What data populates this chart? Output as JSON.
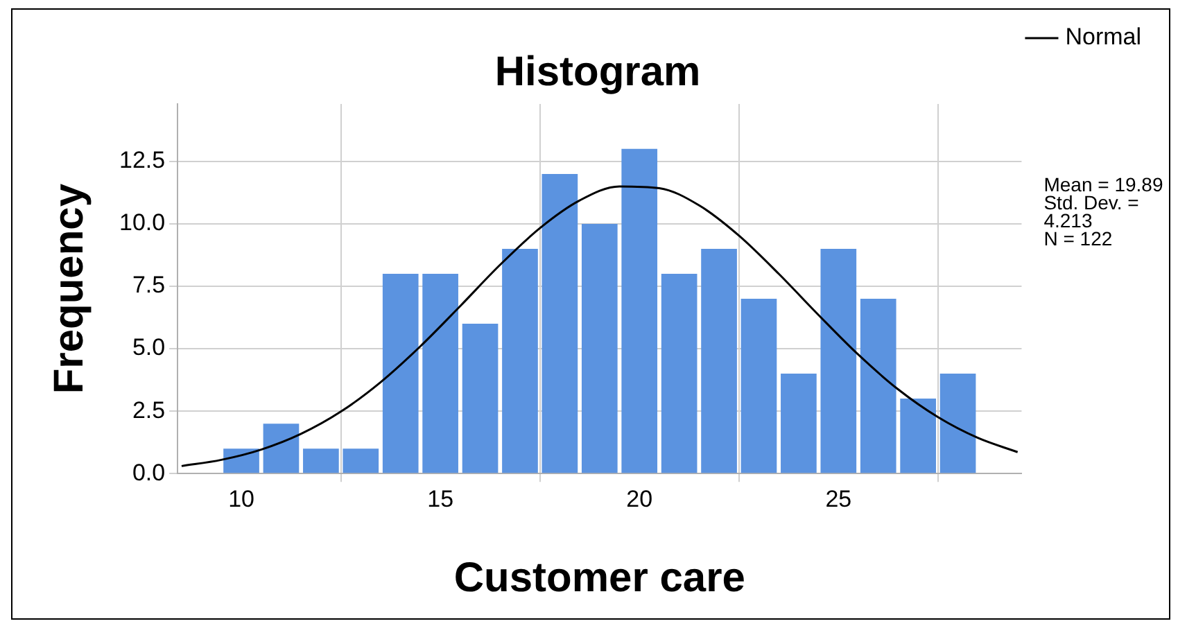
{
  "chart_data": {
    "type": "histogram",
    "title": "Histogram",
    "xlabel": "Customer care",
    "ylabel": "Frequency",
    "bins": [
      9.5,
      10.5,
      11.5,
      12.5,
      13.5,
      14.5,
      15.5,
      16.5,
      17.5,
      18.5,
      19.5,
      20.5,
      21.5,
      22.5,
      23.5,
      24.5,
      25.5,
      26.5,
      27.5,
      28.5
    ],
    "values": [
      1,
      2,
      1,
      1,
      8,
      8,
      6,
      9,
      12,
      10,
      13,
      8,
      9,
      7,
      4,
      9,
      7,
      3,
      4
    ],
    "color": "#5b93e0",
    "series": [
      {
        "name": "Normal",
        "type": "line",
        "color": "#000000",
        "x": [
          8.5,
          9.5,
          10.5,
          11.5,
          12.5,
          13.5,
          14.5,
          15.5,
          16.5,
          17.5,
          18.5,
          19.5,
          20.5,
          21.5,
          22.5,
          23.5,
          24.5,
          25.5,
          26.5,
          27.5,
          28.5,
          29.5
        ],
        "values": [
          0.3,
          0.55,
          0.96,
          1.59,
          2.48,
          3.66,
          5.1,
          6.71,
          8.36,
          9.83,
          10.94,
          11.5,
          11.43,
          10.74,
          9.53,
          8.0,
          6.35,
          4.76,
          3.37,
          2.26,
          1.43,
          0.86
        ]
      }
    ],
    "xlim": [
      8.4,
      29.6
    ],
    "xticks": [
      10,
      15,
      20,
      25
    ],
    "ylim": [
      0,
      14.8
    ],
    "yticks": [
      {
        "value": 0,
        "label": "0.0"
      },
      {
        "value": 2.5,
        "label": "2.5"
      },
      {
        "value": 5,
        "label": "5.0"
      },
      {
        "value": 7.5,
        "label": "7.5"
      },
      {
        "value": 10,
        "label": "10.0"
      },
      {
        "value": 12.5,
        "label": "12.5"
      }
    ],
    "grid": true,
    "legend": "top right",
    "marker": "none",
    "line_style": "solid",
    "annotations": [
      "Mean = 19.89",
      "Std. Dev. =",
      "4.213",
      "N = 122"
    ]
  }
}
